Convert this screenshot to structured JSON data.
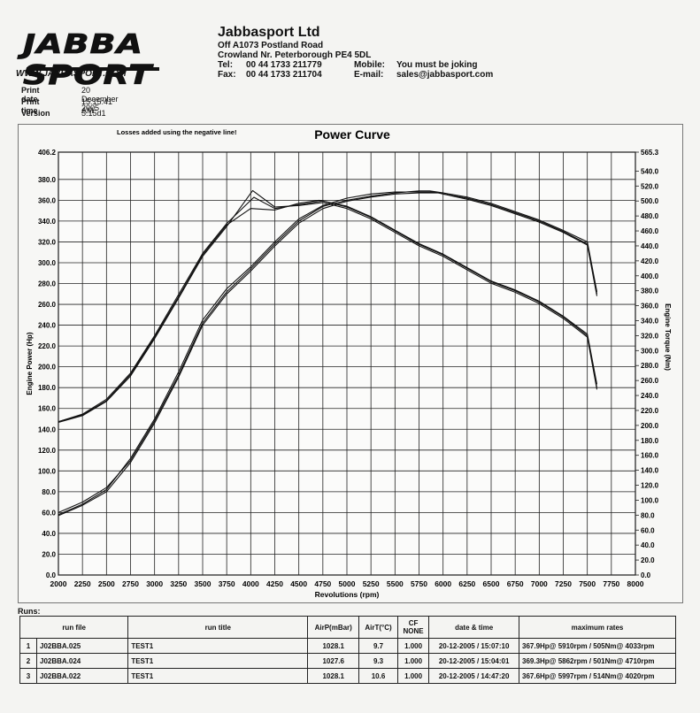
{
  "logo": {
    "wordmark": "JABBA SPORT",
    "url": "WWW.JABBASPORT.COM"
  },
  "company": {
    "name": "Jabbasport Ltd",
    "address1": "Off A1073 Postland Road",
    "address2": "Crowland Nr. Peterborough PE4 5DL",
    "tel_label": "Tel:",
    "tel": "00 44 1733 211779",
    "fax_label": "Fax:",
    "fax": "00 44 1733 211704",
    "mobile_label": "Mobile:",
    "mobile": "You must be joking",
    "email_label": "E-mail:",
    "email": "sales@jabbasport.com"
  },
  "meta": {
    "print_date_label": "Print date",
    "print_date": "20 December 2005",
    "print_time_label": "Print time",
    "print_time": "15:15:41 AM",
    "version_label": "Version",
    "version": "5.15d1"
  },
  "chart_data": {
    "type": "line",
    "title": "Power Curve",
    "note": "Losses added using the negative line!",
    "xlabel": "Revolutions (rpm)",
    "ylabel_left": "Engine Power (Hp)",
    "ylabel_right": "Engine Torque (Nm)",
    "xlim": [
      2000,
      8000
    ],
    "ylim_left": [
      0,
      406.2
    ],
    "ylim_right": [
      0,
      565.3
    ],
    "x_ticks": [
      2000,
      2250,
      2500,
      2750,
      3000,
      3250,
      3500,
      3750,
      4000,
      4250,
      4500,
      4750,
      5000,
      5250,
      5500,
      5750,
      6000,
      6250,
      6500,
      6750,
      7000,
      7250,
      7500,
      7750,
      8000
    ],
    "y_left_ticks": [
      "0.0",
      "20.0",
      "40.0",
      "60.0",
      "80.0",
      "100.0",
      "120.0",
      "140.0",
      "160.0",
      "180.0",
      "200.0",
      "220.0",
      "240.0",
      "260.0",
      "280.0",
      "300.0",
      "320.0",
      "340.0",
      "360.0",
      "380.0",
      "406.2"
    ],
    "y_right_ticks": [
      "0.0",
      "20.0",
      "40.0",
      "60.0",
      "80.0",
      "100.0",
      "120.0",
      "140.0",
      "160.0",
      "180.0",
      "200.0",
      "220.0",
      "240.0",
      "260.0",
      "280.0",
      "300.0",
      "320.0",
      "340.0",
      "360.0",
      "380.0",
      "400.0",
      "420.0",
      "440.0",
      "460.0",
      "480.0",
      "500.0",
      "520.0",
      "540.0",
      "565.3"
    ],
    "grid": true,
    "series": [
      {
        "axis": "left",
        "kind": "power",
        "x": [
          2000,
          2250,
          2500,
          2750,
          3000,
          3250,
          3500,
          3750,
          4000,
          4250,
          4500,
          4750,
          5000,
          5250,
          5500,
          5750,
          5910,
          6000,
          6250,
          6500,
          6750,
          7000,
          7250,
          7500,
          7600
        ],
        "y": [
          58,
          68,
          82,
          112,
          150,
          195,
          245,
          275,
          296,
          320,
          342,
          355,
          362,
          366,
          368,
          368,
          368,
          366,
          362,
          356,
          348,
          340,
          330,
          318,
          270
        ]
      },
      {
        "axis": "left",
        "kind": "power",
        "x": [
          2000,
          2250,
          2500,
          2750,
          3000,
          3250,
          3500,
          3750,
          4000,
          4250,
          4500,
          4750,
          5000,
          5250,
          5500,
          5750,
          5862,
          6000,
          6250,
          6500,
          6750,
          7000,
          7250,
          7500,
          7600
        ],
        "y": [
          60,
          70,
          84,
          110,
          148,
          192,
          242,
          272,
          294,
          318,
          340,
          354,
          360,
          364,
          367,
          369,
          369,
          367,
          363,
          357,
          349,
          341,
          331,
          320,
          272
        ]
      },
      {
        "axis": "left",
        "kind": "power",
        "x": [
          2000,
          2250,
          2500,
          2750,
          3000,
          3250,
          3500,
          3750,
          4000,
          4250,
          4500,
          4750,
          5000,
          5250,
          5500,
          5750,
          5997,
          6000,
          6250,
          6500,
          6750,
          7000,
          7250,
          7500,
          7600
        ],
        "y": [
          57,
          67,
          80,
          108,
          146,
          190,
          240,
          270,
          292,
          316,
          338,
          352,
          359,
          363,
          366,
          367,
          367,
          366,
          361,
          355,
          347,
          339,
          329,
          317,
          268
        ]
      },
      {
        "axis": "right",
        "kind": "torque",
        "x": [
          2000,
          2250,
          2500,
          2750,
          3000,
          3250,
          3500,
          3750,
          4033,
          4250,
          4500,
          4750,
          5000,
          5250,
          5500,
          5750,
          6000,
          6250,
          6500,
          6750,
          7000,
          7250,
          7500,
          7600
        ],
        "y": [
          205,
          215,
          235,
          270,
          320,
          375,
          430,
          470,
          505,
          490,
          495,
          500,
          492,
          478,
          460,
          442,
          428,
          410,
          392,
          380,
          365,
          345,
          320,
          250
        ]
      },
      {
        "axis": "right",
        "kind": "torque",
        "x": [
          2000,
          2250,
          2500,
          2750,
          3000,
          3250,
          3500,
          3750,
          4000,
          4250,
          4500,
          4710,
          5000,
          5250,
          5500,
          5750,
          6000,
          6250,
          6500,
          6750,
          7000,
          7250,
          7500,
          7600
        ],
        "y": [
          205,
          214,
          233,
          268,
          318,
          372,
          428,
          468,
          490,
          488,
          497,
          501,
          493,
          479,
          461,
          443,
          429,
          411,
          393,
          381,
          366,
          346,
          322,
          255
        ]
      },
      {
        "axis": "right",
        "kind": "torque",
        "x": [
          2000,
          2250,
          2500,
          2750,
          3000,
          3250,
          3500,
          3750,
          4020,
          4250,
          4500,
          4750,
          5000,
          5250,
          5500,
          5750,
          6000,
          6250,
          6500,
          6750,
          7000,
          7250,
          7500,
          7600
        ],
        "y": [
          204,
          213,
          232,
          266,
          316,
          370,
          426,
          466,
          514,
          492,
          494,
          498,
          490,
          476,
          458,
          440,
          426,
          408,
          390,
          378,
          363,
          343,
          318,
          248
        ]
      }
    ]
  },
  "runs": {
    "label": "Runs:",
    "headers": {
      "run_file": "run file",
      "run_title": "run title",
      "airp": "AirP(mBar)",
      "airt": "AirT(°C)",
      "cf": "CF",
      "cf2": "NONE",
      "date": "date & time",
      "max": "maximum rates"
    },
    "rows": [
      {
        "n": "1",
        "file": "J02BBA.025",
        "title": "TEST1",
        "airp": "1028.1",
        "airt": "9.7",
        "cf": "1.000",
        "date": "20-12-2005 / 15:07:10",
        "max": "367.9Hp@ 5910rpm / 505Nm@ 4033rpm"
      },
      {
        "n": "2",
        "file": "J02BBA.024",
        "title": "TEST1",
        "airp": "1027.6",
        "airt": "9.3",
        "cf": "1.000",
        "date": "20-12-2005 / 15:04:01",
        "max": "369.3Hp@ 5862rpm / 501Nm@ 4710rpm"
      },
      {
        "n": "3",
        "file": "J02BBA.022",
        "title": "TEST1",
        "airp": "1028.1",
        "airt": "10.6",
        "cf": "1.000",
        "date": "20-12-2005 / 14:47:20",
        "max": "367.6Hp@ 5997rpm / 514Nm@ 4020rpm"
      }
    ]
  }
}
